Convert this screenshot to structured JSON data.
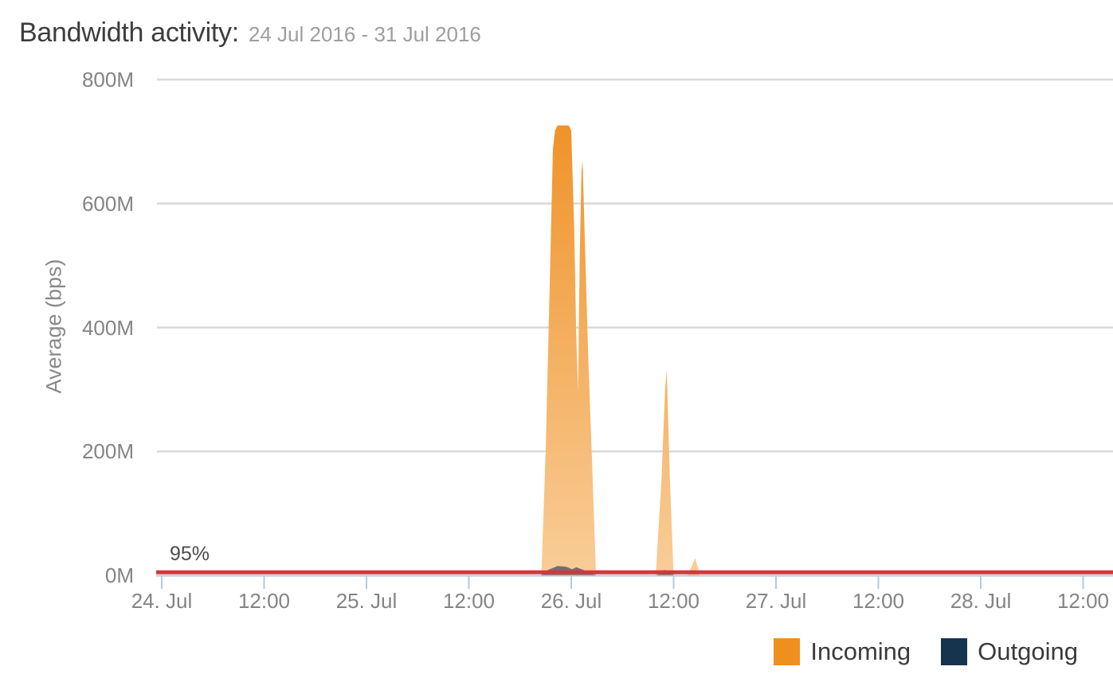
{
  "header": {
    "title": "Bandwidth activity:",
    "subtitle": "24 Jul 2016 - 31 Jul 2016"
  },
  "colors": {
    "title_text": "#3d3d3d",
    "subtitle_text": "#9e9e9e",
    "axis_text": "#848484",
    "grid_line": "#d9d9d9",
    "axis_line": "#b5c9dc",
    "percentile_line": "#ce393d",
    "incoming_gradient_top": "#ee8d1e",
    "incoming_gradient_bottom": "#f9cd98",
    "outgoing_fill": "#5d6875",
    "legend_incoming": "#ef8f1f",
    "legend_outgoing": "#17344e",
    "legend_text": "#3a3a3a",
    "percentile_text": "#4c4c4c"
  },
  "chart_data": {
    "type": "area",
    "title": "Bandwidth activity: 24 Jul 2016 - 31 Jul 2016",
    "ylabel": "Average (bps)",
    "ylim": [
      0,
      800
    ],
    "yticks": [
      "0M",
      "200M",
      "400M",
      "600M",
      "800M"
    ],
    "xticks": [
      "24. Jul",
      "12:00",
      "25. Jul",
      "12:00",
      "26. Jul",
      "12:00",
      "27. Jul",
      "12:00",
      "28. Jul",
      "12:00"
    ],
    "hours_per_xtick": 12,
    "grid": true,
    "legend_position": "bottom-right",
    "percentile": {
      "label": "95%",
      "value_M": 5
    },
    "series": [
      {
        "name": "Incoming",
        "unit": "Mbps (M)",
        "points_hours_vs_M": [
          [
            0,
            0
          ],
          [
            44.5,
            0
          ],
          [
            45.0,
            200
          ],
          [
            45.5,
            480
          ],
          [
            45.85,
            688
          ],
          [
            46.1,
            718
          ],
          [
            46.4,
            726
          ],
          [
            47.7,
            726
          ],
          [
            48.0,
            718
          ],
          [
            48.35,
            560
          ],
          [
            48.6,
            380
          ],
          [
            48.8,
            297
          ],
          [
            49.0,
            520
          ],
          [
            49.2,
            650
          ],
          [
            49.33,
            670
          ],
          [
            49.6,
            540
          ],
          [
            50.0,
            350
          ],
          [
            50.45,
            180
          ],
          [
            50.9,
            0
          ],
          [
            57.9,
            0
          ],
          [
            58.6,
            160
          ],
          [
            59.0,
            300
          ],
          [
            59.2,
            331
          ],
          [
            59.55,
            160
          ],
          [
            60.0,
            0
          ],
          [
            61.6,
            0
          ],
          [
            62.1,
            14
          ],
          [
            62.5,
            28
          ],
          [
            62.8,
            15
          ],
          [
            63.1,
            0
          ],
          [
            111.5,
            0
          ]
        ]
      },
      {
        "name": "Outgoing",
        "unit": "Mbps (M)",
        "points_hours_vs_M": [
          [
            0,
            0
          ],
          [
            44.4,
            0
          ],
          [
            45.3,
            9
          ],
          [
            46.4,
            15
          ],
          [
            47.4,
            14
          ],
          [
            48.1,
            10
          ],
          [
            48.6,
            13
          ],
          [
            49.4,
            9
          ],
          [
            50.2,
            3
          ],
          [
            51.1,
            0
          ],
          [
            58.0,
            0
          ],
          [
            58.9,
            9
          ],
          [
            59.5,
            5
          ],
          [
            60.1,
            0
          ],
          [
            111.5,
            0
          ]
        ]
      }
    ]
  },
  "legend": {
    "items": [
      {
        "label": "Incoming",
        "color": "#ef8f1f"
      },
      {
        "label": "Outgoing",
        "color": "#17344e"
      }
    ]
  }
}
